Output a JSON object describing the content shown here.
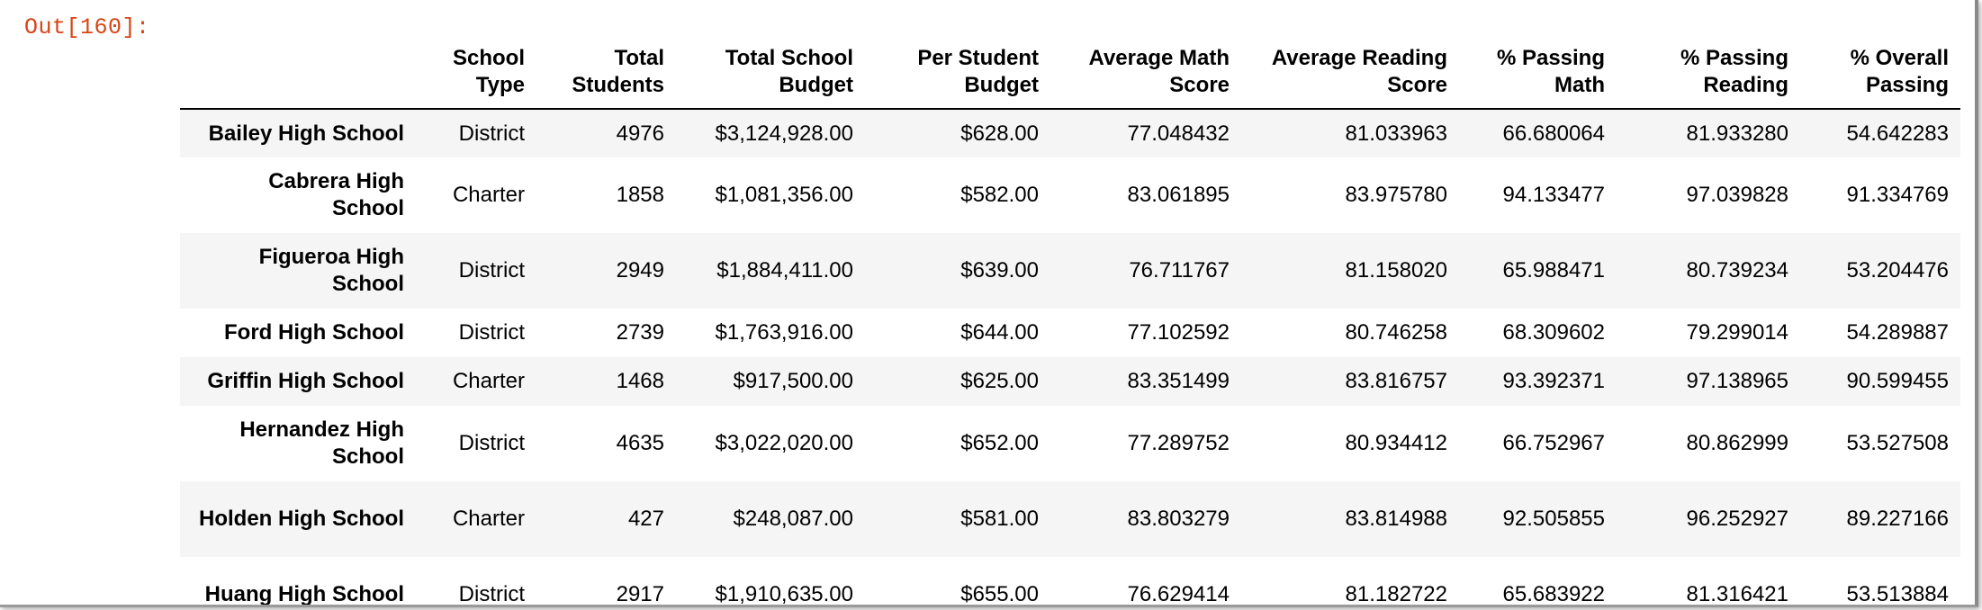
{
  "output_prompt": "Out[160]:",
  "table": {
    "headers": [
      "",
      "School\nType",
      "Total\nStudents",
      "Total School\nBudget",
      "Per Student\nBudget",
      "Average Math\nScore",
      "Average Reading\nScore",
      "% Passing\nMath",
      "% Passing\nReading",
      "% Overall\nPassing"
    ],
    "rows": [
      {
        "name": "Bailey High School",
        "cells": [
          "District",
          "4976",
          "$3,124,928.00",
          "$628.00",
          "77.048432",
          "81.033963",
          "66.680064",
          "81.933280",
          "54.642283"
        ]
      },
      {
        "name": "Cabrera High School",
        "cells": [
          "Charter",
          "1858",
          "$1,081,356.00",
          "$582.00",
          "83.061895",
          "83.975780",
          "94.133477",
          "97.039828",
          "91.334769"
        ]
      },
      {
        "name": "Figueroa High School",
        "cells": [
          "District",
          "2949",
          "$1,884,411.00",
          "$639.00",
          "76.711767",
          "81.158020",
          "65.988471",
          "80.739234",
          "53.204476"
        ]
      },
      {
        "name": "Ford High School",
        "cells": [
          "District",
          "2739",
          "$1,763,916.00",
          "$644.00",
          "77.102592",
          "80.746258",
          "68.309602",
          "79.299014",
          "54.289887"
        ]
      },
      {
        "name": "Griffin High School",
        "cells": [
          "Charter",
          "1468",
          "$917,500.00",
          "$625.00",
          "83.351499",
          "83.816757",
          "93.392371",
          "97.138965",
          "90.599455"
        ]
      },
      {
        "name": "Hernandez High School",
        "cells": [
          "District",
          "4635",
          "$3,022,020.00",
          "$652.00",
          "77.289752",
          "80.934412",
          "66.752967",
          "80.862999",
          "53.527508"
        ]
      },
      {
        "name": "Holden High School",
        "cells": [
          "Charter",
          "427",
          "$248,087.00",
          "$581.00",
          "83.803279",
          "83.814988",
          "92.505855",
          "96.252927",
          "89.227166"
        ]
      },
      {
        "name": "Huang High School",
        "cells": [
          "District",
          "2917",
          "$1,910,635.00",
          "$655.00",
          "76.629414",
          "81.182722",
          "65.683922",
          "81.316421",
          "53.513884"
        ]
      }
    ]
  }
}
